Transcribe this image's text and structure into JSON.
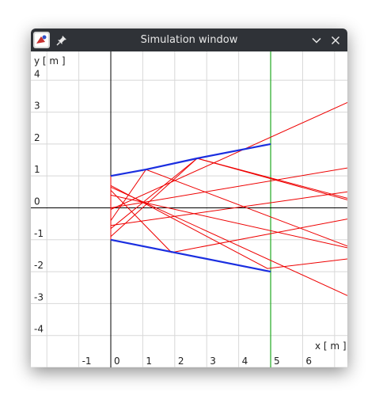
{
  "window": {
    "title": "Simulation window"
  },
  "icons": {
    "app": "app-icon",
    "pin": "pin-icon",
    "minimize": "chevron-down-icon",
    "close": "close-icon"
  },
  "chart_data": {
    "type": "line",
    "xlabel": "x [ m ]",
    "ylabel": "y [ m ]",
    "xlim": [
      -2.5,
      7.4
    ],
    "ylim": [
      -5.0,
      4.9
    ],
    "x_ticks": [
      "-1",
      "0",
      "1",
      "2",
      "3",
      "4",
      "5",
      "6"
    ],
    "y_ticks": [
      "4",
      "3",
      "2",
      "1",
      "0",
      "-1",
      "-2",
      "-3",
      "-4"
    ],
    "grid": true,
    "colors": {
      "axes": "#000000",
      "grid": "#d8d8d8",
      "mirror": "#1a2ee0",
      "ray": "#ee0000",
      "screen": "#22aa22"
    },
    "screen": {
      "x": 5.0
    },
    "mirrors": [
      {
        "x": [
          0,
          1.1,
          2.7,
          5.0
        ],
        "y": [
          1.0,
          1.2,
          1.55,
          2.0
        ]
      },
      {
        "x": [
          0,
          5.0
        ],
        "y": [
          -1.0,
          -2.0
        ]
      }
    ],
    "rays": [
      {
        "x": [
          0,
          0,
          0
        ],
        "y": [
          1.0,
          0,
          -1.0
        ]
      },
      {
        "x": [
          0,
          7.4
        ],
        "y": [
          -0.05,
          3.3
        ]
      },
      {
        "x": [
          0,
          1.1,
          7.4
        ],
        "y": [
          -0.4,
          1.2,
          -1.2
        ]
      },
      {
        "x": [
          0,
          2.7,
          7.4
        ],
        "y": [
          -0.65,
          1.55,
          0.25
        ]
      },
      {
        "x": [
          0,
          2.7,
          7.4
        ],
        "y": [
          -0.9,
          1.55,
          0.3
        ]
      },
      {
        "x": [
          0,
          7.4
        ],
        "y": [
          0,
          1.25
        ]
      },
      {
        "x": [
          0,
          1.9,
          7.4
        ],
        "y": [
          0.55,
          -1.4,
          -0.35
        ]
      },
      {
        "x": [
          0,
          4.9,
          7.4
        ],
        "y": [
          0.7,
          -1.9,
          -1.6
        ]
      },
      {
        "x": [
          0,
          7.4
        ],
        "y": [
          0.65,
          -2.75
        ]
      },
      {
        "x": [
          0,
          7.4
        ],
        "y": [
          0.4,
          -1.25
        ]
      },
      {
        "x": [
          0,
          7.4
        ],
        "y": [
          -0.55,
          0.5
        ]
      }
    ]
  }
}
